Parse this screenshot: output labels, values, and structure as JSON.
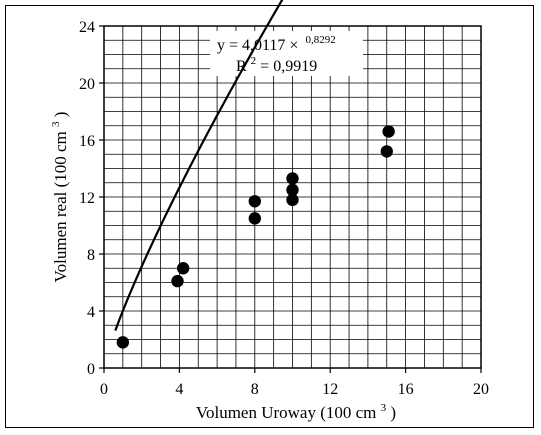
{
  "chart_data": {
    "type": "scatter",
    "xlabel": "Volumen Uroway (100 cm",
    "xlabel_sup": "3",
    "xlabel_tail": ")",
    "ylabel": "Volumen real (100  cm",
    "ylabel_sup": "3",
    "ylabel_tail": ")",
    "xlim": [
      0,
      20
    ],
    "ylim": [
      0,
      24
    ],
    "xticks": [
      0,
      4,
      8,
      12,
      16,
      20
    ],
    "yticks": [
      0,
      4,
      8,
      12,
      16,
      20,
      24
    ],
    "grid": true,
    "series": [
      {
        "points": [
          {
            "x": 1.0,
            "y": 1.8
          },
          {
            "x": 3.9,
            "y": 6.1
          },
          {
            "x": 4.2,
            "y": 7.0
          },
          {
            "x": 8.0,
            "y": 11.7
          },
          {
            "x": 8.0,
            "y": 10.5
          },
          {
            "x": 10.0,
            "y": 13.3
          },
          {
            "x": 10.0,
            "y": 12.5
          },
          {
            "x": 10.0,
            "y": 11.8
          },
          {
            "x": 15.0,
            "y": 15.2
          },
          {
            "x": 15.1,
            "y": 16.6
          }
        ]
      }
    ],
    "fit": {
      "coefficient": 4.0117,
      "exponent": 0.8292,
      "x_range": [
        0.6,
        20
      ]
    },
    "annotation": {
      "equation_prefix": "y = 4,0117 ×",
      "equation_exponent": "0,8292",
      "r2_prefix": "R",
      "r2_sup": "2",
      "r2_value": " = 0,9919"
    }
  }
}
